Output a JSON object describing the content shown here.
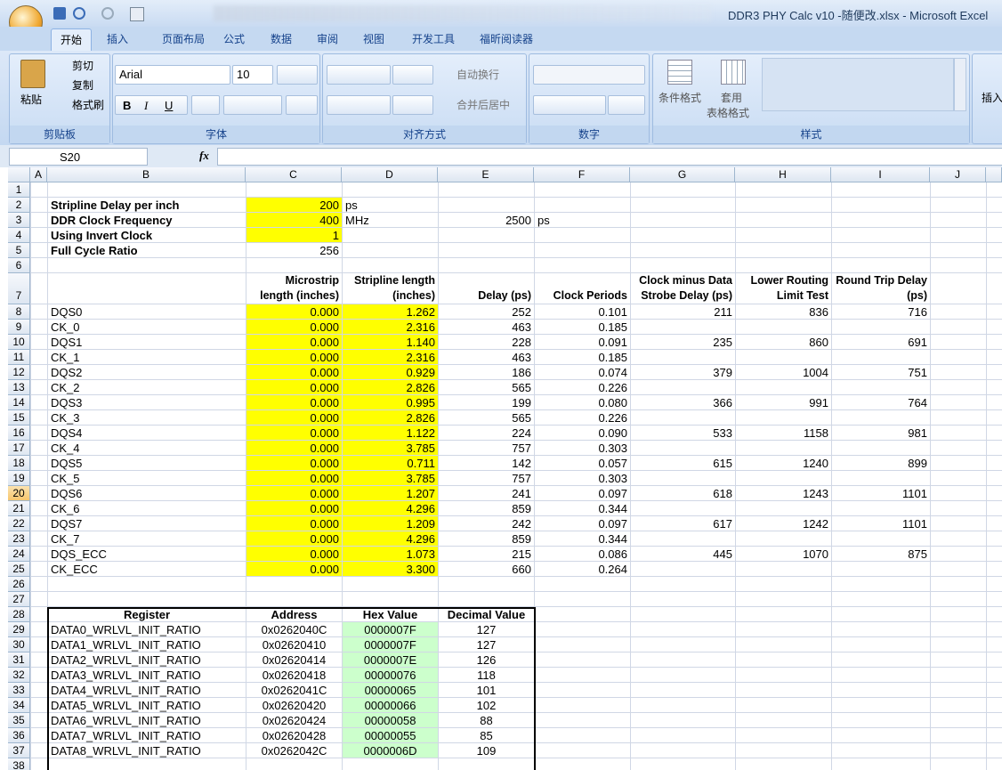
{
  "window": {
    "title": "DDR3 PHY Calc v10 -随便改.xlsx - Microsoft Excel"
  },
  "ribbon": {
    "tabs": [
      "开始",
      "插入",
      "页面布局",
      "公式",
      "数据",
      "审阅",
      "视图",
      "开发工具",
      "福昕阅读器"
    ],
    "clipboard": {
      "paste": "粘贴",
      "cut": "剪切",
      "copy": "复制",
      "format_painter": "格式刷",
      "label": "剪贴板"
    },
    "font": {
      "name": "Arial",
      "size": "10",
      "bold": "B",
      "italic": "I",
      "underline": "U",
      "label": "字体"
    },
    "alignment": {
      "wrap": "自动换行",
      "merge": "合并后居中",
      "label": "对齐方式"
    },
    "number": {
      "label": "数字"
    },
    "styles": {
      "conditional": "条件格式",
      "table_1": "套用",
      "table_2": "表格格式",
      "label": "样式"
    },
    "cells": {
      "insert": "插入"
    }
  },
  "formula_bar": {
    "name_box": "S20",
    "fx": "fx"
  },
  "sheet": {
    "column_headers": [
      "A",
      "B",
      "C",
      "D",
      "E",
      "F",
      "G",
      "H",
      "I",
      "J"
    ],
    "row_headers": [
      1,
      2,
      3,
      4,
      5,
      6,
      7,
      8,
      9,
      10,
      11,
      12,
      13,
      14,
      15,
      16,
      17,
      18,
      19,
      20,
      21,
      22,
      23,
      24,
      25,
      26,
      27,
      28,
      29,
      30,
      31,
      32,
      33,
      34,
      35,
      36,
      37,
      38
    ],
    "cells": {
      "B2": "Stripline Delay per inch",
      "C2": "200",
      "D2": "ps",
      "B3": "DDR Clock Frequency",
      "C3": "400",
      "D3": "MHz",
      "E3": "2500",
      "F3": "ps",
      "B4": "Using Invert Clock",
      "C4": "1",
      "B5": "Full Cycle Ratio",
      "C5": "256",
      "C7": "Microstrip length (inches)",
      "D7": "Stripline length (inches)",
      "E7": "Delay (ps)",
      "F7": "Clock Periods",
      "G7": "Clock minus Data Strobe Delay (ps)",
      "H7": "Lower Routing Limit Test",
      "I7": "Round Trip Delay (ps)",
      "B8": "DQS0",
      "C8": "0.000",
      "D8": "1.262",
      "E8": "252",
      "F8": "0.101",
      "G8": "211",
      "H8": "836",
      "I8": "716",
      "B9": "CK_0",
      "C9": "0.000",
      "D9": "2.316",
      "E9": "463",
      "F9": "0.185",
      "B10": "DQS1",
      "C10": "0.000",
      "D10": "1.140",
      "E10": "228",
      "F10": "0.091",
      "G10": "235",
      "H10": "860",
      "I10": "691",
      "B11": "CK_1",
      "C11": "0.000",
      "D11": "2.316",
      "E11": "463",
      "F11": "0.185",
      "B12": "DQS2",
      "C12": "0.000",
      "D12": "0.929",
      "E12": "186",
      "F12": "0.074",
      "G12": "379",
      "H12": "1004",
      "I12": "751",
      "B13": "CK_2",
      "C13": "0.000",
      "D13": "2.826",
      "E13": "565",
      "F13": "0.226",
      "B14": "DQS3",
      "C14": "0.000",
      "D14": "0.995",
      "E14": "199",
      "F14": "0.080",
      "G14": "366",
      "H14": "991",
      "I14": "764",
      "B15": "CK_3",
      "C15": "0.000",
      "D15": "2.826",
      "E15": "565",
      "F15": "0.226",
      "B16": "DQS4",
      "C16": "0.000",
      "D16": "1.122",
      "E16": "224",
      "F16": "0.090",
      "G16": "533",
      "H16": "1158",
      "I16": "981",
      "B17": "CK_4",
      "C17": "0.000",
      "D17": "3.785",
      "E17": "757",
      "F17": "0.303",
      "B18": "DQS5",
      "C18": "0.000",
      "D18": "0.711",
      "E18": "142",
      "F18": "0.057",
      "G18": "615",
      "H18": "1240",
      "I18": "899",
      "B19": "CK_5",
      "C19": "0.000",
      "D19": "3.785",
      "E19": "757",
      "F19": "0.303",
      "B20": "DQS6",
      "C20": "0.000",
      "D20": "1.207",
      "E20": "241",
      "F20": "0.097",
      "G20": "618",
      "H20": "1243",
      "I20": "1101",
      "B21": "CK_6",
      "C21": "0.000",
      "D21": "4.296",
      "E21": "859",
      "F21": "0.344",
      "B22": "DQS7",
      "C22": "0.000",
      "D22": "1.209",
      "E22": "242",
      "F22": "0.097",
      "G22": "617",
      "H22": "1242",
      "I22": "1101",
      "B23": "CK_7",
      "C23": "0.000",
      "D23": "4.296",
      "E23": "859",
      "F23": "0.344",
      "B24": "DQS_ECC",
      "C24": "0.000",
      "D24": "1.073",
      "E24": "215",
      "F24": "0.086",
      "G24": "445",
      "H24": "1070",
      "I24": "875",
      "B25": "CK_ECC",
      "C25": "0.000",
      "D25": "3.300",
      "E25": "660",
      "F25": "0.264",
      "B28": "Register",
      "C28": "Address",
      "D28": "Hex Value",
      "E28": "Decimal Value",
      "B29": "DATA0_WRLVL_INIT_RATIO",
      "C29": "0x0262040C",
      "D29": "0000007F",
      "E29": "127",
      "B30": "DATA1_WRLVL_INIT_RATIO",
      "C30": "0x02620410",
      "D30": "0000007F",
      "E30": "127",
      "B31": "DATA2_WRLVL_INIT_RATIO",
      "C31": "0x02620414",
      "D31": "0000007E",
      "E31": "126",
      "B32": "DATA3_WRLVL_INIT_RATIO",
      "C32": "0x02620418",
      "D32": "00000076",
      "E32": "118",
      "B33": "DATA4_WRLVL_INIT_RATIO",
      "C33": "0x0262041C",
      "D33": "00000065",
      "E33": "101",
      "B34": "DATA5_WRLVL_INIT_RATIO",
      "C34": "0x02620420",
      "D34": "00000066",
      "E34": "102",
      "B35": "DATA6_WRLVL_INIT_RATIO",
      "C35": "0x02620424",
      "D35": "00000058",
      "E35": "88",
      "B36": "DATA7_WRLVL_INIT_RATIO",
      "C36": "0x02620428",
      "D36": "00000055",
      "E36": "85",
      "B37": "DATA8_WRLVL_INIT_RATIO",
      "C37": "0x0262042C",
      "D37": "0000006D",
      "E37": "109"
    }
  }
}
